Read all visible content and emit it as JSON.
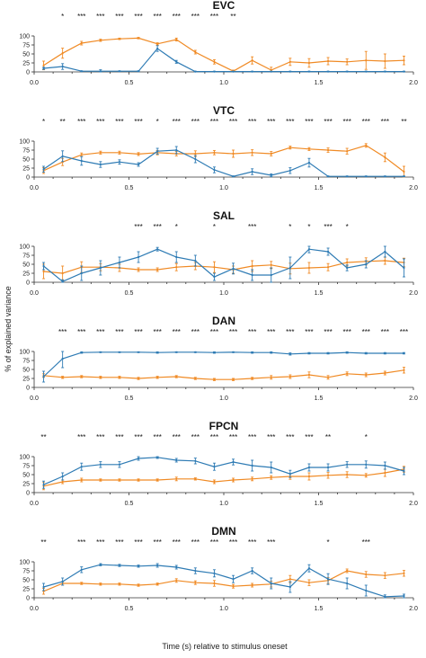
{
  "chart_data": {
    "type": "line",
    "ylabel": "% of explained variance",
    "xlabel": "Time (s) relative to stimulus oneset",
    "x": [
      0.05,
      0.15,
      0.25,
      0.35,
      0.45,
      0.55,
      0.65,
      0.75,
      0.85,
      0.95,
      1.05,
      1.15,
      1.25,
      1.35,
      1.45,
      1.55,
      1.65,
      1.75,
      1.85,
      1.95
    ],
    "xlim": [
      0,
      2.0
    ],
    "ylim": [
      0,
      100
    ],
    "xticks": [
      "0.0",
      "0.5",
      "1.0",
      "1.5",
      "2.0"
    ],
    "xtick_values": [
      0,
      0.5,
      1.0,
      1.5,
      2.0
    ],
    "yticks": [
      "0",
      "25",
      "50",
      "75",
      "100"
    ],
    "ytick_values": [
      0,
      25,
      50,
      75,
      100
    ],
    "colors": {
      "blue": "#2e7bb4",
      "orange": "#f08a24"
    },
    "panels": [
      {
        "title": "EVC",
        "sig": [
          "",
          "*",
          "***",
          "***",
          "***",
          "***",
          "***",
          "***",
          "***",
          "***",
          "**",
          "",
          "",
          "",
          "",
          "",
          "",
          "",
          "",
          ""
        ],
        "blue": [
          10,
          15,
          2,
          2,
          2,
          2,
          65,
          28,
          1,
          1,
          1,
          1,
          1,
          1,
          1,
          1,
          1,
          1,
          1,
          1
        ],
        "blue_err": [
          3,
          8,
          1,
          4,
          1,
          1,
          8,
          4,
          1,
          1,
          1,
          1,
          1,
          1,
          1,
          1,
          1,
          1,
          1,
          1
        ],
        "orange": [
          18,
          52,
          80,
          88,
          92,
          94,
          78,
          90,
          55,
          28,
          2,
          32,
          5,
          28,
          25,
          30,
          28,
          32,
          30,
          32
        ],
        "orange_err": [
          12,
          14,
          5,
          3,
          2,
          2,
          3,
          4,
          5,
          6,
          3,
          10,
          8,
          10,
          12,
          10,
          8,
          25,
          20,
          12
        ]
      },
      {
        "title": "VTC",
        "sig": [
          "*",
          "**",
          "***",
          "***",
          "***",
          "***",
          "*",
          "***",
          "***",
          "***",
          "***",
          "***",
          "***",
          "***",
          "***",
          "***",
          "***",
          "***",
          "***",
          "**"
        ],
        "blue": [
          22,
          58,
          45,
          35,
          42,
          35,
          72,
          75,
          50,
          20,
          2,
          15,
          5,
          18,
          40,
          2,
          2,
          2,
          2,
          2
        ],
        "blue_err": [
          8,
          15,
          12,
          8,
          6,
          5,
          8,
          10,
          10,
          8,
          1,
          8,
          4,
          8,
          12,
          1,
          1,
          1,
          1,
          1
        ],
        "orange": [
          18,
          42,
          62,
          68,
          68,
          64,
          68,
          65,
          65,
          68,
          65,
          68,
          65,
          82,
          78,
          75,
          72,
          88,
          55,
          15
        ],
        "orange_err": [
          8,
          10,
          5,
          4,
          4,
          4,
          6,
          6,
          8,
          6,
          10,
          8,
          6,
          4,
          4,
          6,
          8,
          5,
          12,
          15
        ]
      },
      {
        "title": "SAL",
        "sig": [
          "",
          "",
          "",
          "",
          "",
          "***",
          "***",
          "*",
          "",
          "*",
          "",
          "***",
          "",
          "*",
          "*",
          "***",
          "*",
          "",
          "",
          ""
        ],
        "blue": [
          45,
          2,
          25,
          40,
          55,
          70,
          92,
          70,
          60,
          15,
          38,
          20,
          20,
          40,
          92,
          85,
          40,
          50,
          85,
          40
        ],
        "blue_err": [
          10,
          5,
          20,
          20,
          15,
          15,
          5,
          15,
          15,
          10,
          15,
          15,
          20,
          30,
          10,
          10,
          8,
          10,
          15,
          25
        ],
        "orange": [
          30,
          25,
          42,
          42,
          40,
          35,
          35,
          42,
          45,
          42,
          35,
          45,
          48,
          38,
          40,
          42,
          55,
          58,
          60,
          55
        ],
        "orange_err": [
          20,
          20,
          15,
          10,
          10,
          5,
          5,
          10,
          10,
          15,
          10,
          15,
          10,
          15,
          15,
          10,
          10,
          10,
          10,
          12
        ]
      },
      {
        "title": "DAN",
        "sig": [
          "",
          "***",
          "***",
          "***",
          "***",
          "***",
          "***",
          "***",
          "***",
          "***",
          "***",
          "***",
          "***",
          "***",
          "***",
          "***",
          "***",
          "***",
          "***",
          "***"
        ],
        "blue": [
          30,
          80,
          97,
          98,
          98,
          98,
          97,
          98,
          98,
          97,
          98,
          97,
          97,
          93,
          95,
          95,
          97,
          95,
          95,
          95
        ],
        "blue_err": [
          15,
          25,
          2,
          1,
          1,
          1,
          2,
          1,
          1,
          2,
          1,
          2,
          2,
          3,
          2,
          2,
          2,
          2,
          2,
          2
        ],
        "orange": [
          33,
          28,
          30,
          28,
          28,
          25,
          28,
          30,
          25,
          22,
          22,
          25,
          28,
          30,
          35,
          28,
          38,
          35,
          40,
          48
        ],
        "orange_err": [
          5,
          3,
          3,
          3,
          3,
          3,
          3,
          3,
          3,
          3,
          3,
          3,
          5,
          5,
          8,
          5,
          5,
          5,
          5,
          8
        ]
      },
      {
        "title": "FPCN",
        "sig": [
          "**",
          "",
          "***",
          "***",
          "***",
          "***",
          "***",
          "***",
          "***",
          "***",
          "***",
          "***",
          "***",
          "***",
          "***",
          "**",
          "",
          "*",
          "",
          ""
        ],
        "blue": [
          22,
          45,
          72,
          78,
          78,
          95,
          98,
          90,
          88,
          72,
          85,
          75,
          70,
          52,
          70,
          70,
          78,
          78,
          75,
          60
        ],
        "blue_err": [
          10,
          10,
          10,
          8,
          8,
          5,
          3,
          5,
          8,
          10,
          8,
          15,
          15,
          10,
          10,
          10,
          8,
          10,
          10,
          10
        ],
        "orange": [
          18,
          30,
          35,
          35,
          35,
          35,
          35,
          38,
          38,
          30,
          35,
          38,
          42,
          45,
          45,
          48,
          50,
          48,
          55,
          65
        ],
        "orange_err": [
          10,
          5,
          5,
          3,
          3,
          3,
          3,
          5,
          3,
          5,
          5,
          5,
          5,
          8,
          10,
          8,
          8,
          5,
          10,
          8
        ]
      },
      {
        "title": "DMN",
        "sig": [
          "**",
          "",
          "***",
          "***",
          "***",
          "***",
          "***",
          "***",
          "***",
          "***",
          "***",
          "***",
          "***",
          "",
          "",
          "*",
          "",
          "***",
          "",
          ""
        ],
        "blue": [
          30,
          45,
          78,
          92,
          90,
          88,
          90,
          85,
          75,
          68,
          52,
          75,
          40,
          30,
          82,
          52,
          40,
          20,
          3,
          5
        ],
        "blue_err": [
          10,
          10,
          8,
          3,
          3,
          3,
          5,
          5,
          8,
          10,
          10,
          8,
          15,
          15,
          10,
          15,
          15,
          15,
          5,
          5
        ],
        "orange": [
          18,
          40,
          40,
          38,
          38,
          35,
          38,
          48,
          42,
          40,
          32,
          35,
          38,
          52,
          42,
          48,
          75,
          65,
          62,
          68
        ],
        "orange_err": [
          8,
          5,
          3,
          3,
          3,
          3,
          3,
          5,
          5,
          8,
          5,
          5,
          8,
          10,
          8,
          8,
          5,
          8,
          8,
          8
        ]
      }
    ]
  }
}
